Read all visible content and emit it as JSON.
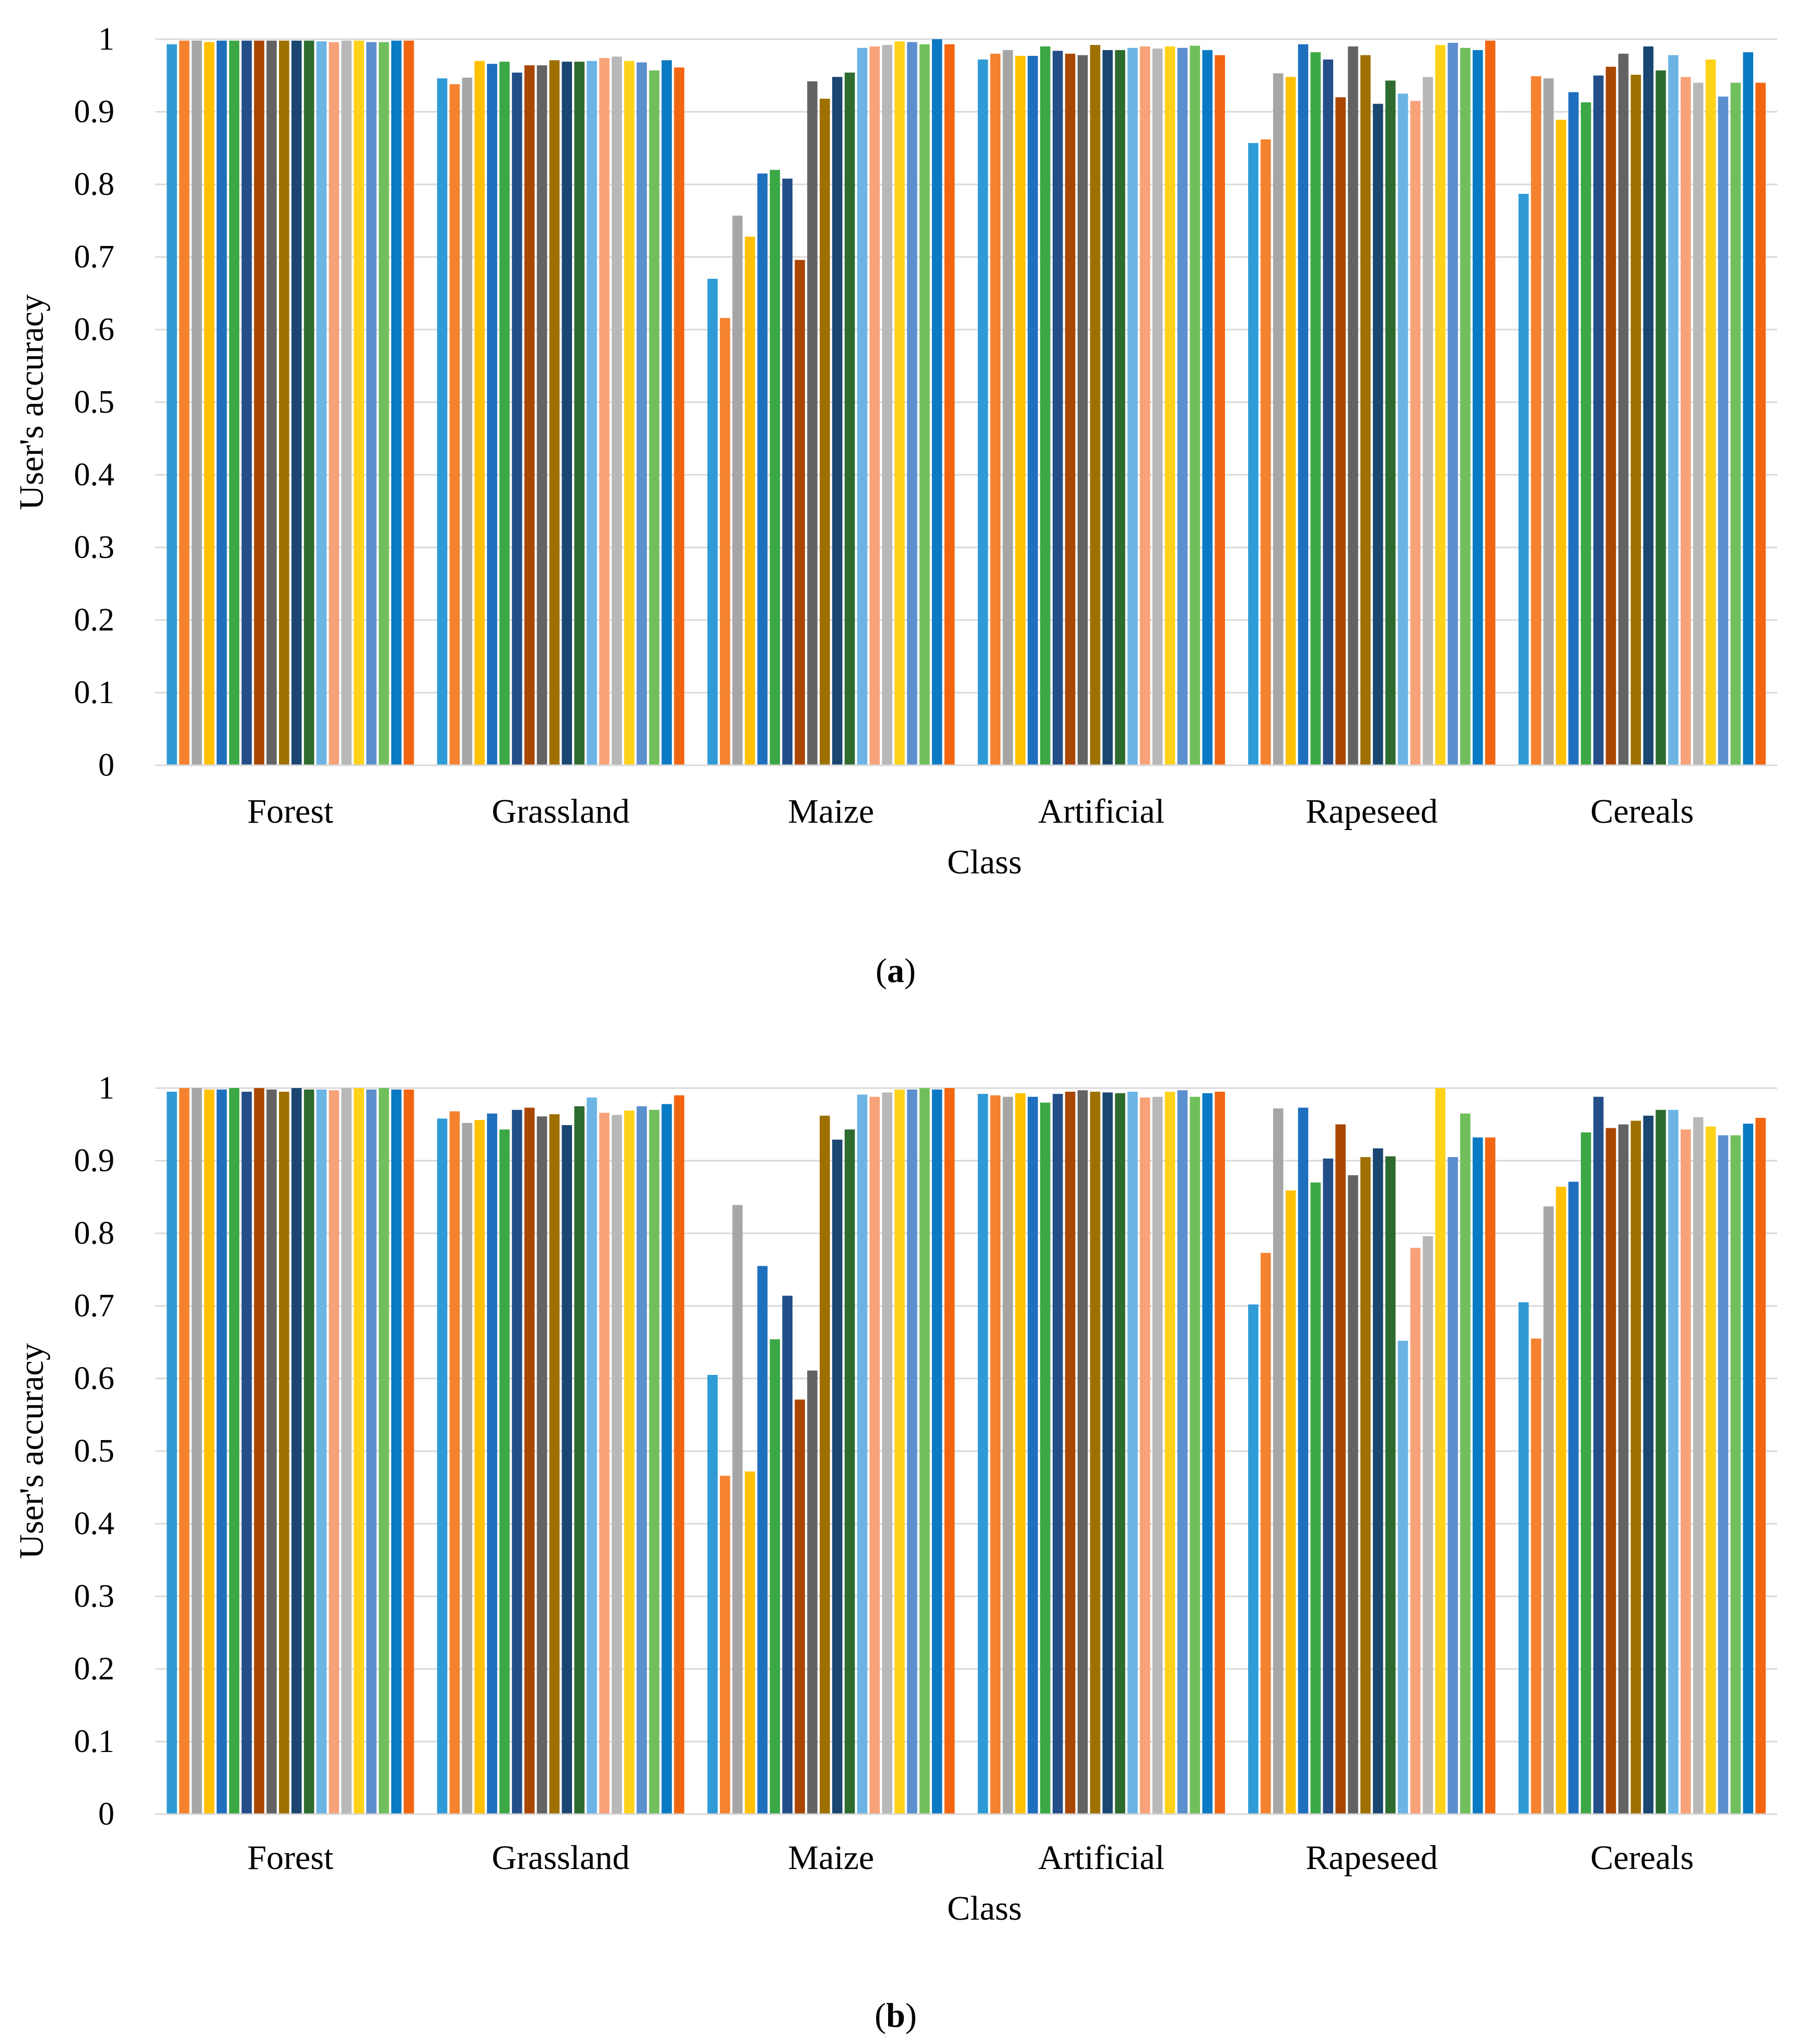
{
  "chart_data": [
    {
      "type": "bar",
      "panel_label": "a",
      "xlabel": "Class",
      "ylabel": "User's accuracy",
      "ylim": [
        0,
        1
      ],
      "yticks": [
        "0",
        "0.1",
        "0.2",
        "0.3",
        "0.4",
        "0.5",
        "0.6",
        "0.7",
        "0.8",
        "0.9",
        "1"
      ],
      "grid": true,
      "legend": "none",
      "categories": [
        "Forest",
        "Grassland",
        "Maize",
        "Artificial",
        "Rapeseed",
        "Cereals"
      ],
      "series_colors": [
        "#2E9BD6",
        "#F5822E",
        "#A6A6A6",
        "#FFC000",
        "#1F6FBF",
        "#3BA845",
        "#244E8A",
        "#A94600",
        "#636363",
        "#9E7000",
        "#1A4671",
        "#2E6B2E",
        "#6CB4E4",
        "#F8A27A",
        "#B8B8B8",
        "#FFD21A",
        "#5B8FCD",
        "#70BF5C",
        "#0A7AC4",
        "#F26511"
      ],
      "values": [
        [
          0.993,
          0.998,
          0.998,
          0.996,
          0.998,
          0.998,
          0.998,
          0.998,
          0.998,
          0.998,
          0.998,
          0.998,
          0.997,
          0.996,
          0.998,
          0.998,
          0.996,
          0.996,
          0.998,
          0.998
        ],
        [
          0.946,
          0.938,
          0.947,
          0.97,
          0.966,
          0.969,
          0.954,
          0.964,
          0.964,
          0.971,
          0.969,
          0.969,
          0.97,
          0.974,
          0.976,
          0.97,
          0.968,
          0.957,
          0.971,
          0.961
        ],
        [
          0.67,
          0.616,
          0.757,
          0.728,
          0.815,
          0.82,
          0.808,
          0.696,
          0.942,
          0.918,
          0.948,
          0.954,
          0.988,
          0.99,
          0.992,
          0.997,
          0.996,
          0.993,
          1.0,
          0.993
        ],
        [
          0.972,
          0.98,
          0.985,
          0.977,
          0.977,
          0.99,
          0.984,
          0.98,
          0.978,
          0.992,
          0.985,
          0.985,
          0.988,
          0.99,
          0.987,
          0.99,
          0.988,
          0.991,
          0.985,
          0.978
        ],
        [
          0.857,
          0.862,
          0.953,
          0.948,
          0.993,
          0.982,
          0.972,
          0.92,
          0.99,
          0.978,
          0.911,
          0.943,
          0.925,
          0.915,
          0.948,
          0.992,
          0.995,
          0.988,
          0.985,
          0.998
        ],
        [
          0.787,
          0.949,
          0.946,
          0.889,
          0.927,
          0.913,
          0.95,
          0.962,
          0.98,
          0.951,
          0.99,
          0.957,
          0.978,
          0.948,
          0.94,
          0.972,
          0.921,
          0.94,
          0.982,
          0.94
        ]
      ]
    },
    {
      "type": "bar",
      "panel_label": "b",
      "xlabel": "Class",
      "ylabel": "User's accuracy",
      "ylim": [
        0,
        1
      ],
      "yticks": [
        "0",
        "0.1",
        "0.2",
        "0.3",
        "0.4",
        "0.5",
        "0.6",
        "0.7",
        "0.8",
        "0.9",
        "1"
      ],
      "grid": true,
      "legend": "none",
      "categories": [
        "Forest",
        "Grassland",
        "Maize",
        "Artificial",
        "Rapeseed",
        "Cereals"
      ],
      "series_colors": [
        "#2E9BD6",
        "#F5822E",
        "#A6A6A6",
        "#FFC000",
        "#1F6FBF",
        "#3BA845",
        "#244E8A",
        "#A94600",
        "#636363",
        "#9E7000",
        "#1A4671",
        "#2E6B2E",
        "#6CB4E4",
        "#F8A27A",
        "#B8B8B8",
        "#FFD21A",
        "#5B8FCD",
        "#70BF5C",
        "#0A7AC4",
        "#F26511"
      ],
      "values": [
        [
          0.995,
          1.0,
          1.0,
          0.998,
          0.998,
          1.0,
          0.995,
          1.0,
          0.998,
          0.995,
          1.0,
          0.998,
          0.998,
          0.997,
          1.0,
          1.0,
          0.998,
          1.0,
          0.998,
          0.998
        ],
        [
          0.958,
          0.968,
          0.952,
          0.956,
          0.965,
          0.943,
          0.97,
          0.973,
          0.961,
          0.964,
          0.949,
          0.975,
          0.987,
          0.966,
          0.963,
          0.969,
          0.975,
          0.97,
          0.978,
          0.99
        ],
        [
          0.605,
          0.466,
          0.839,
          0.472,
          0.755,
          0.654,
          0.714,
          0.571,
          0.611,
          0.962,
          0.929,
          0.943,
          0.991,
          0.988,
          0.994,
          0.998,
          0.998,
          1.0,
          0.998,
          1.0
        ],
        [
          0.992,
          0.99,
          0.988,
          0.993,
          0.988,
          0.98,
          0.992,
          0.995,
          0.997,
          0.995,
          0.994,
          0.993,
          0.995,
          0.987,
          0.988,
          0.995,
          0.997,
          0.988,
          0.993,
          0.995
        ],
        [
          0.702,
          0.773,
          0.972,
          0.859,
          0.973,
          0.87,
          0.903,
          0.95,
          0.88,
          0.905,
          0.917,
          0.906,
          0.652,
          0.78,
          0.796,
          1.0,
          0.905,
          0.965,
          0.932,
          0.932
        ],
        [
          0.705,
          0.655,
          0.837,
          0.864,
          0.871,
          0.939,
          0.988,
          0.945,
          0.95,
          0.955,
          0.962,
          0.97,
          0.97,
          0.943,
          0.96,
          0.947,
          0.935,
          0.935,
          0.951,
          0.959
        ]
      ]
    }
  ]
}
